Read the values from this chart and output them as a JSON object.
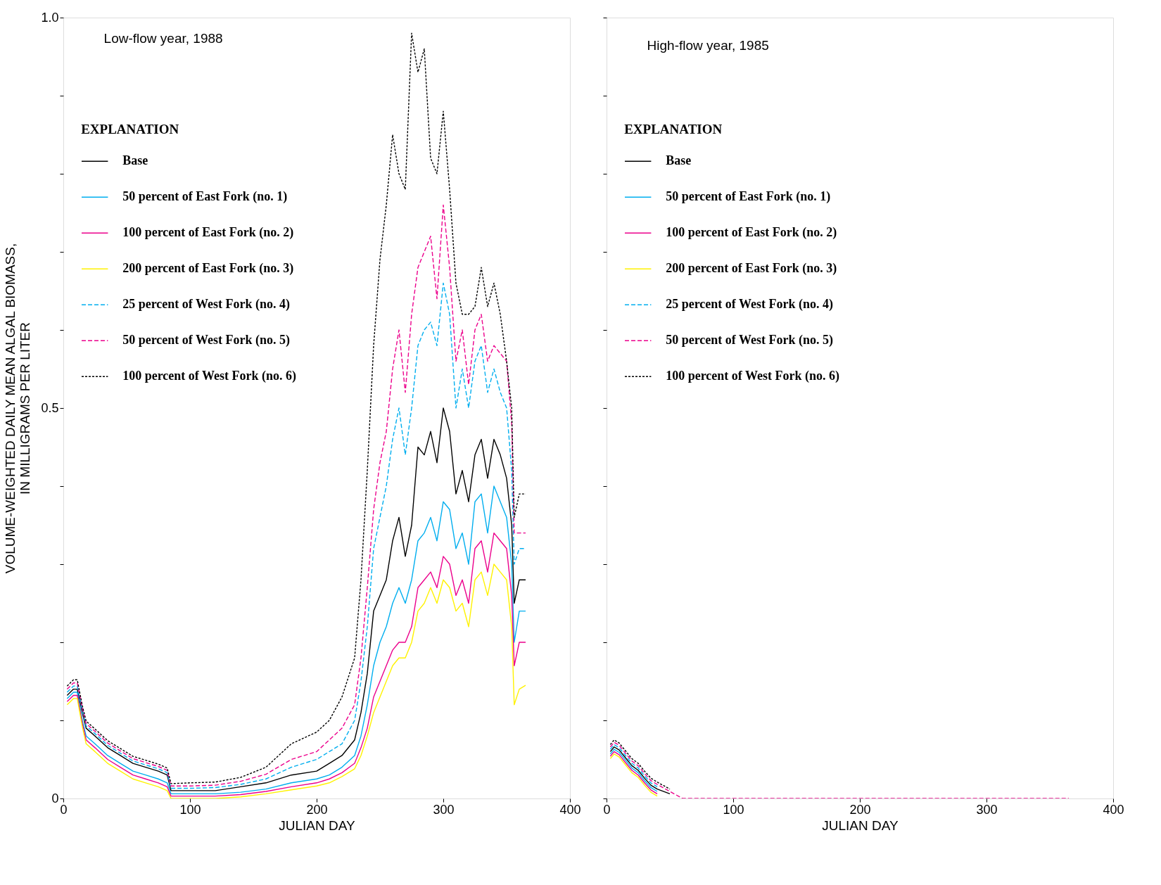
{
  "chart_data": [
    {
      "type": "line",
      "annotations": [
        "Low-flow year, 1988"
      ],
      "xlabel": "JULIAN DAY",
      "ylabel": "VOLUME-WEIGHTED DAILY MEAN ALGAL BIOMASS,\nIN MILLIGRAMS PER LITER",
      "legend_title": "EXPLANATION",
      "legend": "top left",
      "grid": false,
      "xlim": [
        0,
        400
      ],
      "xticks": [
        0,
        100,
        200,
        300,
        400
      ],
      "ylim": [
        0,
        1
      ],
      "yticks": [
        0,
        {
          "value": 0.1,
          "label": null
        },
        {
          "value": 0.2,
          "label": null
        },
        {
          "value": 0.3,
          "label": null
        },
        {
          "value": 0.4,
          "label": null
        },
        0.5,
        {
          "value": 0.6,
          "label": null
        },
        {
          "value": 0.7,
          "label": null
        },
        {
          "value": 0.8,
          "label": null
        },
        {
          "value": 0.9,
          "label": null
        },
        {
          "value": 1,
          "label": "1.0"
        }
      ],
      "x": [
        3,
        8,
        11,
        15,
        18,
        25,
        35,
        45,
        55,
        65,
        75,
        82,
        85,
        100,
        120,
        140,
        160,
        180,
        200,
        210,
        220,
        230,
        235,
        240,
        245,
        250,
        255,
        260,
        265,
        270,
        275,
        280,
        285,
        290,
        295,
        300,
        305,
        310,
        315,
        320,
        325,
        330,
        335,
        340,
        345,
        350,
        354,
        356,
        360,
        365
      ],
      "series": [
        {
          "name": "Base",
          "color": "#000000",
          "line_style": "solid",
          "values": [
            0.132,
            0.14,
            0.14,
            0.11,
            0.09,
            0.08,
            0.065,
            0.055,
            0.045,
            0.04,
            0.035,
            0.03,
            0.01,
            0.01,
            0.01,
            0.015,
            0.02,
            0.03,
            0.035,
            0.045,
            0.055,
            0.075,
            0.11,
            0.16,
            0.24,
            0.26,
            0.28,
            0.33,
            0.36,
            0.31,
            0.35,
            0.45,
            0.44,
            0.47,
            0.43,
            0.5,
            0.47,
            0.39,
            0.42,
            0.38,
            0.44,
            0.46,
            0.41,
            0.46,
            0.44,
            0.41,
            0.35,
            0.25,
            0.28,
            0.28
          ]
        },
        {
          "name": "  50 percent of East Fork (no. 1)",
          "color": "#00aeef",
          "line_style": "solid",
          "values": [
            0.128,
            0.136,
            0.136,
            0.1,
            0.08,
            0.07,
            0.055,
            0.045,
            0.035,
            0.03,
            0.025,
            0.02,
            0.006,
            0.006,
            0.006,
            0.008,
            0.012,
            0.02,
            0.025,
            0.03,
            0.04,
            0.055,
            0.08,
            0.12,
            0.17,
            0.2,
            0.22,
            0.25,
            0.27,
            0.25,
            0.28,
            0.33,
            0.34,
            0.36,
            0.33,
            0.38,
            0.37,
            0.32,
            0.34,
            0.3,
            0.38,
            0.39,
            0.34,
            0.4,
            0.38,
            0.36,
            0.3,
            0.2,
            0.24,
            0.24
          ]
        },
        {
          "name": "100 percent of East Fork (no. 2)",
          "color": "#ec008c",
          "line_style": "solid",
          "values": [
            0.124,
            0.132,
            0.132,
            0.096,
            0.075,
            0.065,
            0.05,
            0.04,
            0.03,
            0.025,
            0.02,
            0.015,
            0.003,
            0.003,
            0.003,
            0.005,
            0.009,
            0.015,
            0.02,
            0.025,
            0.033,
            0.045,
            0.065,
            0.09,
            0.13,
            0.15,
            0.17,
            0.19,
            0.2,
            0.2,
            0.22,
            0.27,
            0.28,
            0.29,
            0.27,
            0.31,
            0.3,
            0.26,
            0.28,
            0.25,
            0.32,
            0.33,
            0.29,
            0.34,
            0.33,
            0.32,
            0.26,
            0.17,
            0.2,
            0.2
          ]
        },
        {
          "name": "200 percent of East Fork (no. 3)",
          "color": "#fff200",
          "line_style": "solid",
          "values": [
            0.12,
            0.128,
            0.128,
            0.092,
            0.07,
            0.06,
            0.045,
            0.035,
            0.025,
            0.02,
            0.015,
            0.01,
            0,
            0,
            0,
            0.002,
            0.006,
            0.011,
            0.016,
            0.02,
            0.028,
            0.038,
            0.055,
            0.08,
            0.11,
            0.13,
            0.15,
            0.17,
            0.18,
            0.18,
            0.2,
            0.24,
            0.25,
            0.27,
            0.25,
            0.28,
            0.27,
            0.24,
            0.25,
            0.22,
            0.28,
            0.29,
            0.26,
            0.3,
            0.29,
            0.28,
            0.22,
            0.12,
            0.14,
            0.145
          ]
        },
        {
          "name": "  25 percent of West Fork (no. 4)",
          "color": "#00aeef",
          "line_style": "dashed",
          "values": [
            0.136,
            0.144,
            0.144,
            0.113,
            0.093,
            0.083,
            0.068,
            0.058,
            0.048,
            0.043,
            0.038,
            0.033,
            0.013,
            0.013,
            0.014,
            0.018,
            0.025,
            0.04,
            0.05,
            0.06,
            0.07,
            0.1,
            0.15,
            0.22,
            0.32,
            0.36,
            0.4,
            0.46,
            0.5,
            0.44,
            0.5,
            0.58,
            0.6,
            0.61,
            0.58,
            0.66,
            0.62,
            0.5,
            0.55,
            0.5,
            0.56,
            0.58,
            0.52,
            0.55,
            0.52,
            0.5,
            0.42,
            0.3,
            0.32,
            0.32
          ]
        },
        {
          "name": "  50 percent of West Fork (no. 5)",
          "color": "#ec008c",
          "line_style": "dashed",
          "values": [
            0.14,
            0.148,
            0.148,
            0.116,
            0.096,
            0.086,
            0.071,
            0.061,
            0.051,
            0.046,
            0.041,
            0.036,
            0.016,
            0.016,
            0.017,
            0.022,
            0.031,
            0.05,
            0.06,
            0.075,
            0.09,
            0.12,
            0.18,
            0.27,
            0.37,
            0.43,
            0.47,
            0.55,
            0.6,
            0.52,
            0.62,
            0.68,
            0.7,
            0.72,
            0.64,
            0.76,
            0.68,
            0.56,
            0.6,
            0.53,
            0.6,
            0.62,
            0.56,
            0.58,
            0.57,
            0.56,
            0.48,
            0.34,
            0.34,
            0.34
          ]
        },
        {
          "name": "100 percent of West Fork (no. 6)",
          "color": "#000000",
          "line_style": "dotted",
          "values": [
            0.144,
            0.152,
            0.152,
            0.119,
            0.099,
            0.089,
            0.074,
            0.064,
            0.054,
            0.049,
            0.044,
            0.039,
            0.019,
            0.02,
            0.021,
            0.027,
            0.04,
            0.07,
            0.085,
            0.1,
            0.13,
            0.18,
            0.28,
            0.42,
            0.58,
            0.69,
            0.76,
            0.85,
            0.8,
            0.78,
            0.98,
            0.93,
            0.96,
            0.82,
            0.8,
            0.88,
            0.78,
            0.66,
            0.62,
            0.62,
            0.63,
            0.68,
            0.63,
            0.66,
            0.62,
            0.56,
            0.5,
            0.36,
            0.39,
            0.39
          ]
        }
      ]
    },
    {
      "type": "line",
      "annotations": [
        "High-flow year, 1985"
      ],
      "xlabel": "JULIAN DAY",
      "legend_title": "EXPLANATION",
      "legend": "top left",
      "grid": false,
      "tick_labels": "x",
      "xlim": [
        0,
        400
      ],
      "xticks": [
        0,
        100,
        200,
        300,
        400
      ],
      "ylim": [
        0,
        1
      ],
      "yticks": [
        0,
        0.1,
        0.2,
        0.3,
        0.4,
        0.5,
        0.6,
        0.7,
        0.8,
        0.9,
        1
      ],
      "x": [
        3,
        6,
        10,
        15,
        20,
        25,
        30,
        35,
        40,
        50,
        60,
        100,
        200,
        300,
        365
      ],
      "series": [
        {
          "name": "Base",
          "color": "#000000",
          "line_style": "solid",
          "values": [
            0.06,
            0.066,
            0.062,
            0.052,
            0.042,
            0.036,
            0.026,
            0.017,
            0.012,
            0.006,
            null,
            null,
            null,
            null,
            null
          ]
        },
        {
          "name": "  50 percent of East Fork (no. 1)",
          "color": "#00aeef",
          "line_style": "solid",
          "values": [
            0.057,
            0.063,
            0.059,
            0.049,
            0.039,
            0.033,
            0.023,
            0.014,
            0.009,
            null,
            null,
            null,
            null,
            null,
            null
          ]
        },
        {
          "name": "100 percent of East Fork (no. 2)",
          "color": "#ec008c",
          "line_style": "solid",
          "values": [
            0.054,
            0.06,
            0.056,
            0.046,
            0.036,
            0.03,
            0.02,
            0.011,
            0.006,
            null,
            null,
            null,
            null,
            null,
            null
          ]
        },
        {
          "name": "200 percent of East Fork (no. 3)",
          "color": "#fff200",
          "line_style": "solid",
          "values": [
            0.051,
            0.057,
            0.053,
            0.043,
            0.033,
            0.027,
            0.017,
            0.008,
            0.003,
            null,
            null,
            null,
            null,
            null,
            null
          ]
        },
        {
          "name": "  25 percent of West Fork (no. 4)",
          "color": "#00aeef",
          "line_style": "dashed",
          "values": [
            0.063,
            0.069,
            0.065,
            0.055,
            0.045,
            0.039,
            0.029,
            0.02,
            0.015,
            null,
            null,
            null,
            null,
            null,
            null
          ]
        },
        {
          "name": "  50 percent of West Fork (no. 5)",
          "color": "#ec008c",
          "line_style": "dashed",
          "values": [
            0.066,
            0.072,
            0.068,
            0.058,
            0.048,
            0.042,
            0.032,
            0.023,
            0.018,
            0.009,
            0,
            0,
            0,
            0,
            0
          ]
        },
        {
          "name": "100 percent of West Fork (no. 6)",
          "color": "#000000",
          "line_style": "dotted",
          "values": [
            0.069,
            0.075,
            0.071,
            0.061,
            0.051,
            0.045,
            0.035,
            0.026,
            0.021,
            0.012,
            null,
            null,
            null,
            null,
            null
          ]
        }
      ]
    }
  ]
}
